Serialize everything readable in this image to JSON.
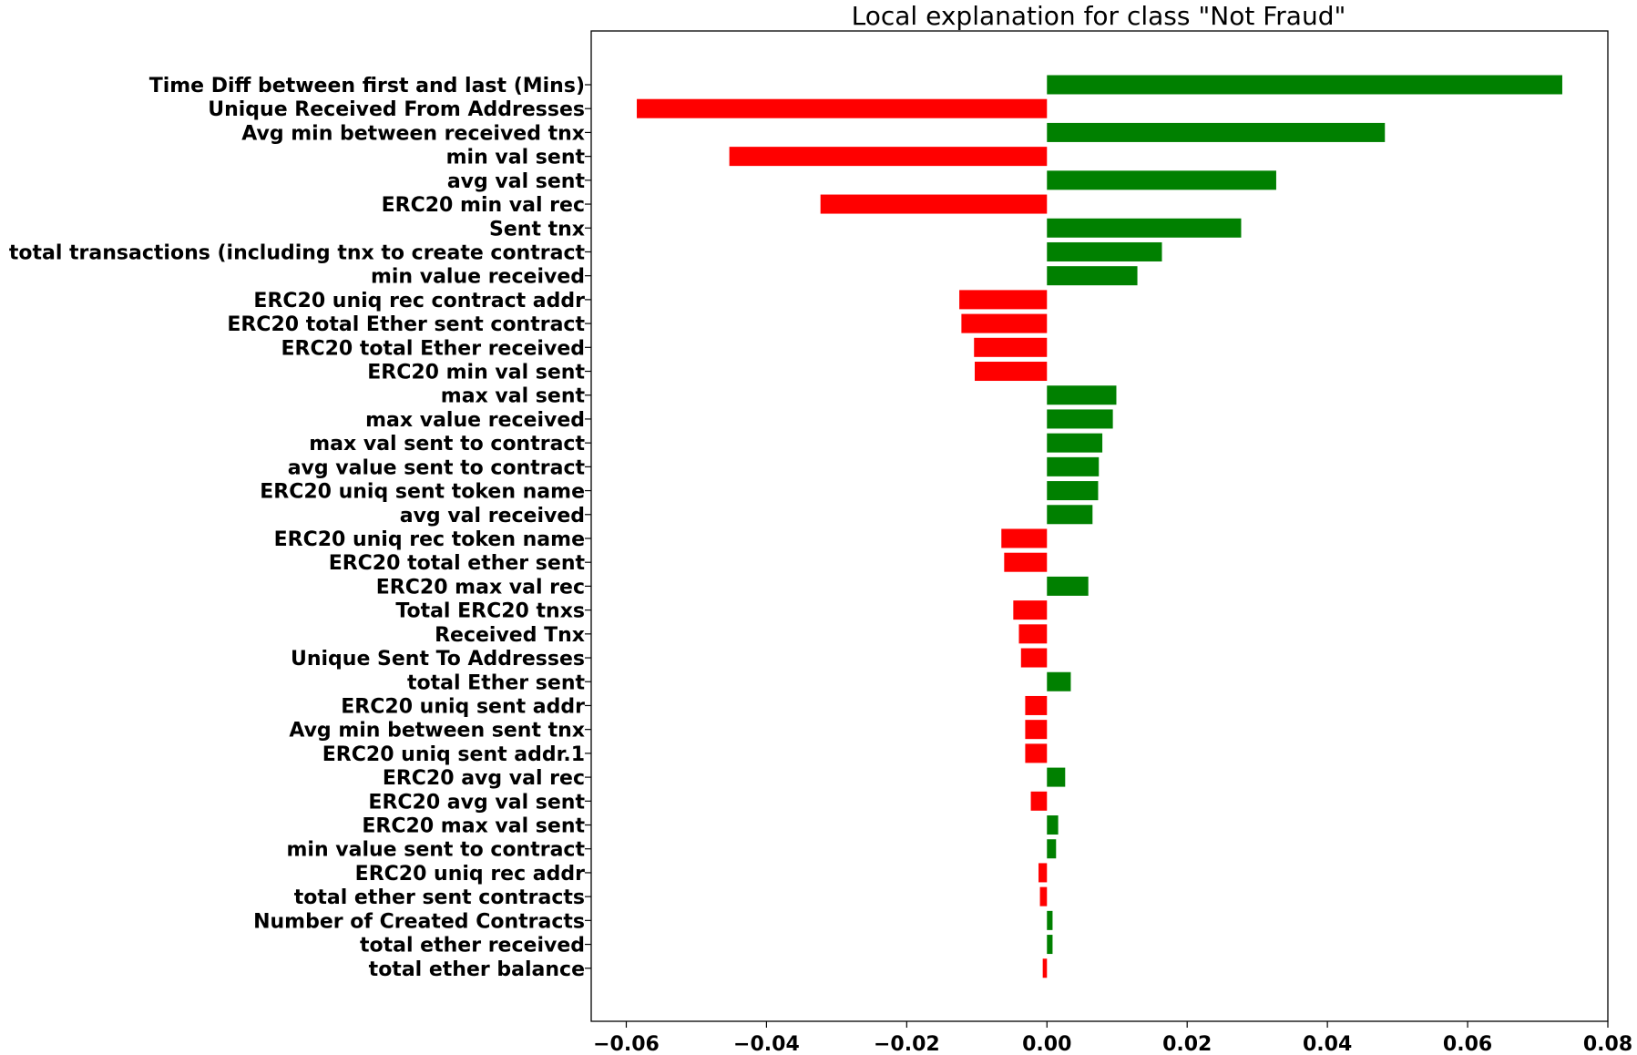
{
  "chart_data": {
    "type": "bar",
    "orientation": "horizontal",
    "title": "Local explanation for class \"Not Fraud\"",
    "xlabel": "",
    "ylabel": "",
    "xlim": [
      -0.065,
      0.08
    ],
    "xticks": [
      -0.06,
      -0.04,
      -0.02,
      0.0,
      0.02,
      0.04,
      0.06,
      0.08
    ],
    "xtick_labels": [
      "−0.06",
      "−0.04",
      "−0.02",
      "0.00",
      "0.02",
      "0.04",
      "0.06",
      "0.08"
    ],
    "grid": false,
    "legend": "none",
    "colors": {
      "positive": "#008000",
      "negative": "#ff0000"
    },
    "categories": [
      "Time Diff between first and last (Mins)",
      "Unique Received From Addresses",
      "Avg min between received tnx",
      "min val sent",
      "avg val sent",
      "ERC20 min val rec",
      "Sent tnx",
      "total transactions (including tnx to create contract",
      "min value received",
      "ERC20 uniq rec contract addr",
      "ERC20 total Ether sent contract",
      "ERC20 total Ether received",
      "ERC20 min val sent",
      "max val sent",
      "max value received ",
      "max val sent to contract",
      "avg value sent to contract",
      "ERC20 uniq sent token name",
      "avg val received",
      "ERC20 uniq rec token name",
      "ERC20 total ether sent",
      "ERC20 max val rec",
      "Total ERC20 tnxs",
      "Received Tnx",
      "Unique Sent To Addresses",
      "total Ether sent",
      "ERC20 uniq sent addr",
      "Avg min between sent tnx",
      "ERC20 uniq sent addr.1",
      "ERC20 avg val rec",
      "ERC20 avg val sent",
      "ERC20 max val sent",
      "min value sent to contract",
      "ERC20 uniq rec addr",
      "total ether sent contracts",
      "Number of Created Contracts",
      "total ether received",
      "total ether balance"
    ],
    "values": [
      0.0735,
      -0.0585,
      0.0482,
      -0.0453,
      0.0327,
      -0.0323,
      0.0277,
      0.0164,
      0.0129,
      -0.0125,
      -0.0122,
      -0.0104,
      -0.0103,
      0.0099,
      0.0094,
      0.0079,
      0.0074,
      0.0073,
      0.0065,
      -0.0065,
      -0.0061,
      0.0059,
      -0.0048,
      -0.004,
      -0.0037,
      0.0034,
      -0.0031,
      -0.0031,
      -0.0031,
      0.0026,
      -0.0023,
      0.0016,
      0.0013,
      -0.0012,
      -0.001,
      0.0008,
      0.0008,
      -0.0006
    ]
  }
}
